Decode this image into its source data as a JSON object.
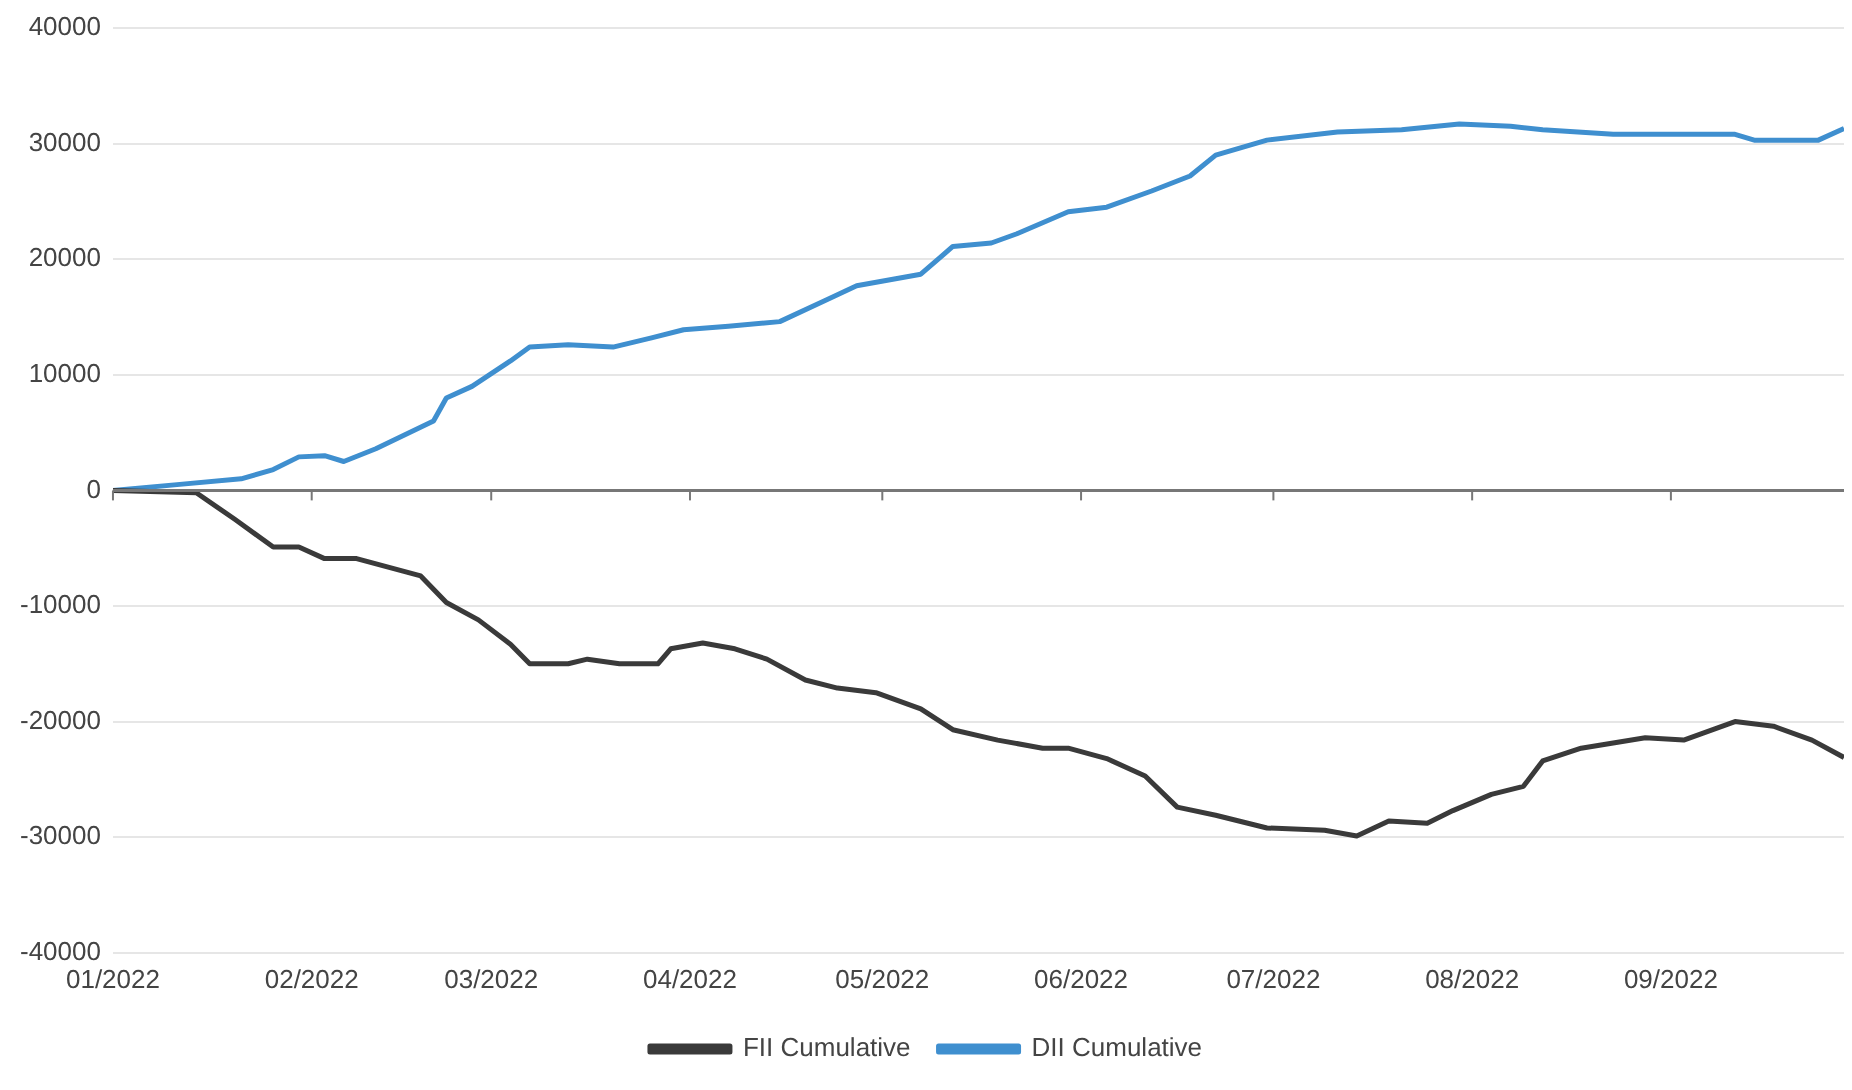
{
  "chart_data": {
    "type": "line",
    "legend": "bottom",
    "grid": "y",
    "marker": "none",
    "line_style": "solid",
    "xlim": [
      "2022-01-01",
      "2022-09-28"
    ],
    "xticks": [
      {
        "value": "2022-01-01",
        "label": "01/2022"
      },
      {
        "value": "2022-02-01",
        "label": "02/2022"
      },
      {
        "value": "2022-03-01",
        "label": "03/2022"
      },
      {
        "value": "2022-04-01",
        "label": "04/2022"
      },
      {
        "value": "2022-05-01",
        "label": "05/2022"
      },
      {
        "value": "2022-06-01",
        "label": "06/2022"
      },
      {
        "value": "2022-07-01",
        "label": "07/2022"
      },
      {
        "value": "2022-08-01",
        "label": "08/2022"
      },
      {
        "value": "2022-09-01",
        "label": "09/2022"
      }
    ],
    "ylim": [
      -40000,
      40000
    ],
    "yticks": [
      -40000,
      -30000,
      -20000,
      -10000,
      0,
      10000,
      20000,
      30000,
      40000
    ],
    "series": [
      {
        "name": "FII Cumulative",
        "color": "#3a3a3a",
        "x": [
          "2022-01-01",
          "2022-01-14",
          "2022-01-20",
          "2022-01-26",
          "2022-01-30",
          "2022-02-03",
          "2022-02-08",
          "2022-02-18",
          "2022-02-22",
          "2022-02-27",
          "2022-03-04",
          "2022-03-07",
          "2022-03-13",
          "2022-03-16",
          "2022-03-21",
          "2022-03-27",
          "2022-03-29",
          "2022-04-03",
          "2022-04-08",
          "2022-04-13",
          "2022-04-19",
          "2022-04-24",
          "2022-04-30",
          "2022-05-07",
          "2022-05-12",
          "2022-05-19",
          "2022-05-26",
          "2022-05-30",
          "2022-06-05",
          "2022-06-11",
          "2022-06-16",
          "2022-06-22",
          "2022-06-30",
          "2022-07-09",
          "2022-07-14",
          "2022-07-19",
          "2022-07-25",
          "2022-07-29",
          "2022-08-04",
          "2022-08-09",
          "2022-08-12",
          "2022-08-18",
          "2022-08-28",
          "2022-09-03",
          "2022-09-11",
          "2022-09-17",
          "2022-09-23",
          "2022-09-28"
        ],
        "values": [
          0,
          -200,
          -2500,
          -4900,
          -4900,
          -5900,
          -5900,
          -7400,
          -9700,
          -11200,
          -13300,
          -15000,
          -15000,
          -14600,
          -15000,
          -15000,
          -13700,
          -13200,
          -13700,
          -14600,
          -16400,
          -17100,
          -17500,
          -18900,
          -20700,
          -21600,
          -22300,
          -22300,
          -23200,
          -24700,
          -27400,
          -28100,
          -29200,
          -29400,
          -29900,
          -28600,
          -28800,
          -27700,
          -26300,
          -25600,
          -23400,
          -22300,
          -21400,
          -21600,
          -20000,
          -20400,
          -21600,
          -23100
        ]
      },
      {
        "name": "DII Cumulative",
        "color": "#3f8fcf",
        "x": [
          "2022-01-01",
          "2022-01-11",
          "2022-01-21",
          "2022-01-26",
          "2022-01-30",
          "2022-02-03",
          "2022-02-06",
          "2022-02-11",
          "2022-02-17",
          "2022-02-20",
          "2022-02-22",
          "2022-02-26",
          "2022-03-04",
          "2022-03-07",
          "2022-03-13",
          "2022-03-20",
          "2022-03-26",
          "2022-03-31",
          "2022-04-07",
          "2022-04-15",
          "2022-04-22",
          "2022-04-27",
          "2022-05-07",
          "2022-05-12",
          "2022-05-18",
          "2022-05-22",
          "2022-05-30",
          "2022-06-05",
          "2022-06-12",
          "2022-06-18",
          "2022-06-22",
          "2022-06-30",
          "2022-07-11",
          "2022-07-21",
          "2022-07-30",
          "2022-08-07",
          "2022-08-12",
          "2022-08-23",
          "2022-09-11",
          "2022-09-14",
          "2022-09-24",
          "2022-09-28"
        ],
        "values": [
          0,
          500,
          1000,
          1800,
          2900,
          3000,
          2500,
          3600,
          5200,
          6000,
          8000,
          9000,
          11200,
          12400,
          12600,
          12400,
          13200,
          13900,
          14200,
          14600,
          16400,
          17700,
          18700,
          21100,
          21400,
          22200,
          24100,
          24500,
          25900,
          27200,
          29000,
          30300,
          31000,
          31200,
          31700,
          31500,
          31200,
          30800,
          30800,
          30300,
          30300,
          31300
        ]
      }
    ]
  }
}
